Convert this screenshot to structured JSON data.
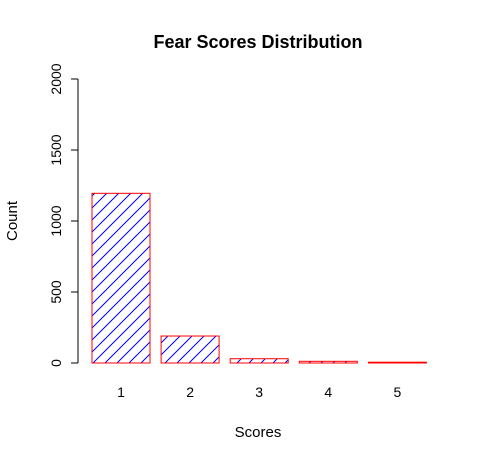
{
  "chart_data": {
    "type": "bar",
    "title": "Fear Scores Distribution",
    "xlabel": "Scores",
    "ylabel": "Count",
    "categories": [
      "1",
      "2",
      "3",
      "4",
      "5"
    ],
    "values": [
      1195,
      190,
      30,
      12,
      4
    ],
    "ylim": [
      0,
      2000
    ],
    "yticks": [
      "0",
      "500",
      "1000",
      "1500",
      "2000"
    ],
    "bar_fill_pattern": "diagonal-hatch",
    "colors": {
      "bar_border": "#ff0000",
      "hatch": "#0000ff"
    },
    "grid": false,
    "legend": "none"
  }
}
